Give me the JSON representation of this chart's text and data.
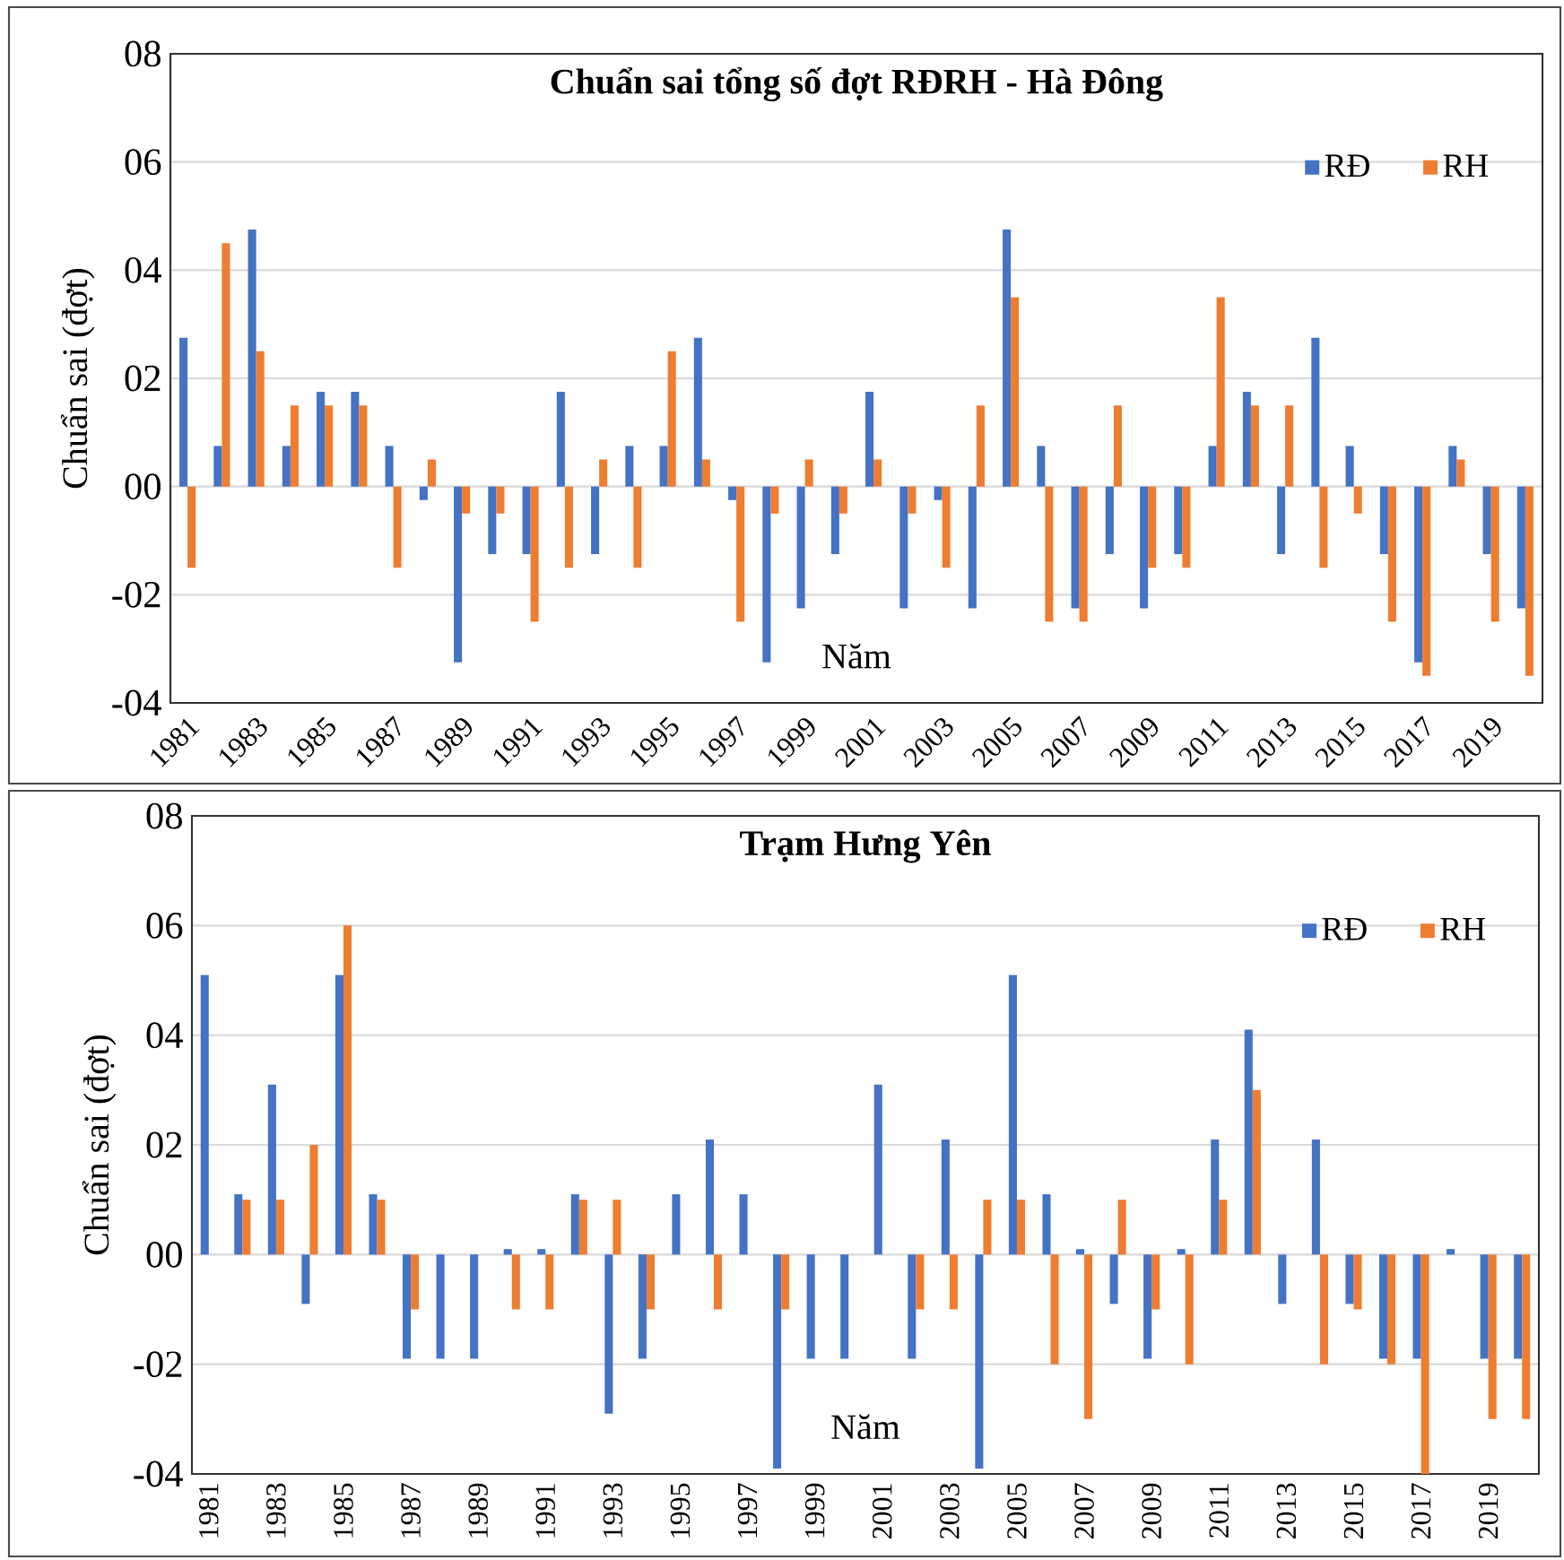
{
  "chart_data": [
    {
      "type": "bar",
      "title": "Chuẩn sai tổng số đợt RĐRH - Hà Đông",
      "xlabel": "Năm",
      "ylabel": "Chuẩn sai (đợt)",
      "categories": [
        "1981",
        null,
        "1983",
        null,
        "1985",
        null,
        "1987",
        null,
        "1989",
        null,
        "1991",
        null,
        "1993",
        null,
        "1995",
        null,
        "1997",
        null,
        "1999",
        null,
        "2001",
        null,
        "2003",
        null,
        "2005",
        null,
        "2007",
        null,
        "2009",
        null,
        "2011",
        null,
        "2013",
        null,
        "2015",
        null,
        "2017",
        null,
        "2019",
        null
      ],
      "series": [
        {
          "name": "RĐ",
          "color": "#4472c4",
          "values": [
            2.75,
            0.75,
            4.75,
            0.75,
            1.75,
            1.75,
            0.75,
            -0.25,
            -3.25,
            -1.25,
            -1.25,
            1.75,
            -1.25,
            0.75,
            0.75,
            2.75,
            -0.25,
            -3.25,
            -2.25,
            -1.25,
            1.75,
            -2.25,
            -0.25,
            -2.25,
            4.75,
            0.75,
            -2.25,
            -1.25,
            -2.25,
            -1.25,
            0.75,
            1.75,
            -1.25,
            2.75,
            0.75,
            -1.25,
            -3.25,
            0.75,
            -1.25,
            -2.25
          ]
        },
        {
          "name": "RH",
          "color": "#ed7d31",
          "values": [
            -1.5,
            4.5,
            2.5,
            1.5,
            1.5,
            1.5,
            -1.5,
            0.5,
            -0.5,
            -0.5,
            -2.5,
            -1.5,
            0.5,
            -1.5,
            2.5,
            0.5,
            -2.5,
            -0.5,
            0.5,
            -0.5,
            0.5,
            -0.5,
            -1.5,
            1.5,
            3.5,
            -2.5,
            -2.5,
            1.5,
            -1.5,
            -1.5,
            3.5,
            1.5,
            1.5,
            -1.5,
            -0.5,
            -2.5,
            -3.5,
            0.5,
            -2.5,
            -3.5
          ]
        }
      ],
      "ylim": [
        -4,
        8
      ],
      "yticks": [
        {
          "value": -4,
          "label": "-04"
        },
        {
          "value": -2,
          "label": "-02"
        },
        {
          "value": 0,
          "label": "00"
        },
        {
          "value": 2,
          "label": "02"
        },
        {
          "value": 4,
          "label": "04"
        },
        {
          "value": 6,
          "label": "06"
        },
        {
          "value": 8,
          "label": "08"
        }
      ],
      "grid": "y",
      "legend": "top right"
    },
    {
      "type": "bar",
      "title": "Trạm Hưng Yên",
      "xlabel": "Năm",
      "ylabel": "Chuẩn sai (đợt)",
      "categories": [
        "1981",
        null,
        "1983",
        null,
        "1985",
        null,
        "1987",
        null,
        "1989",
        null,
        "1991",
        null,
        "1993",
        null,
        "1995",
        null,
        "1997",
        null,
        "1999",
        null,
        "2001",
        null,
        "2003",
        null,
        "2005",
        null,
        "2007",
        null,
        "2009",
        null,
        "2011",
        null,
        "2013",
        null,
        "2015",
        null,
        "2017",
        null,
        "2019",
        null
      ],
      "series": [
        {
          "name": "RĐ",
          "color": "#4472c4",
          "values": [
            5.1,
            1.1,
            3.1,
            -0.9,
            5.1,
            1.1,
            -1.9,
            -1.9,
            -1.9,
            0.1,
            0.1,
            1.1,
            -2.9,
            -1.9,
            1.1,
            2.1,
            1.1,
            -3.9,
            -1.9,
            -1.9,
            3.1,
            -1.9,
            2.1,
            -3.9,
            5.1,
            1.1,
            0.1,
            -0.9,
            -1.9,
            0.1,
            2.1,
            4.1,
            -0.9,
            2.1,
            -0.9,
            -1.9,
            -1.9,
            0.1,
            -1.9,
            -1.9
          ]
        },
        {
          "name": "RH",
          "color": "#ed7d31",
          "values": [
            0,
            1,
            1,
            2,
            6,
            1,
            -1,
            0,
            0,
            -1,
            -1,
            1,
            1,
            -1,
            0,
            -1,
            0,
            -1,
            0,
            0,
            0,
            -1,
            -1,
            1,
            1,
            -2,
            -3,
            1,
            -1,
            -2,
            1,
            3,
            0,
            -2,
            -1,
            -2,
            -4,
            0,
            -3,
            -3
          ]
        }
      ],
      "ylim": [
        -4,
        8
      ],
      "yticks": [
        {
          "value": -4,
          "label": "-04"
        },
        {
          "value": -2,
          "label": "-02"
        },
        {
          "value": 0,
          "label": "00"
        },
        {
          "value": 2,
          "label": "02"
        },
        {
          "value": 4,
          "label": "04"
        },
        {
          "value": 6,
          "label": "06"
        },
        {
          "value": 8,
          "label": "08"
        }
      ],
      "grid": "y",
      "legend": "top right"
    }
  ]
}
